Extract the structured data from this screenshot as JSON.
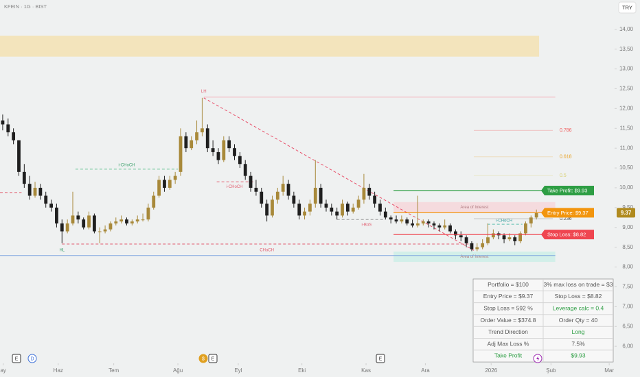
{
  "chart_data": {
    "type": "candlestick",
    "title": "KFEIN · 1G · BIST",
    "currency_button": "TRY",
    "up_color": "#a8893a",
    "down_color": "#1f1f1f",
    "xlim": [
      -0.5,
      113.5
    ],
    "ylim": [
      5.57,
      14.74
    ],
    "xticks": [
      {
        "value": 0.1,
        "label": "ay"
      },
      {
        "value": 10.3,
        "label": "Haz"
      },
      {
        "value": 20.6,
        "label": "Tem"
      },
      {
        "value": 32.5,
        "label": "Ağu"
      },
      {
        "value": 43.7,
        "label": "Eyl"
      },
      {
        "value": 55.5,
        "label": "Eki"
      },
      {
        "value": 67.4,
        "label": "Kas"
      },
      {
        "value": 78.4,
        "label": "Ara"
      },
      {
        "value": 90.6,
        "label": "2026"
      },
      {
        "value": 101.7,
        "label": "Şub"
      },
      {
        "value": 112.5,
        "label": "Mar"
      }
    ],
    "yticks": [
      {
        "value": 14,
        "label": "14,00"
      },
      {
        "value": 13.5,
        "label": "13,50"
      },
      {
        "value": 13,
        "label": "13,00"
      },
      {
        "value": 12.5,
        "label": "12,50"
      },
      {
        "value": 12,
        "label": "12,00"
      },
      {
        "value": 11.5,
        "label": "11,50"
      },
      {
        "value": 11,
        "label": "11,00"
      },
      {
        "value": 10.5,
        "label": "10,50"
      },
      {
        "value": 10,
        "label": "10,00"
      },
      {
        "value": 9.5,
        "label": "9,50"
      },
      {
        "value": 9,
        "label": "9,00"
      },
      {
        "value": 8.5,
        "label": "8,50"
      },
      {
        "value": 8,
        "label": "8,00"
      },
      {
        "value": 7.5,
        "label": "7,50"
      },
      {
        "value": 7,
        "label": "7,00"
      },
      {
        "value": 6.5,
        "label": "6,50"
      },
      {
        "value": 6,
        "label": "6,00"
      }
    ],
    "last_price": 9.37,
    "ohlc": [
      [
        11.7,
        11.85,
        11.45,
        11.6
      ],
      [
        11.6,
        11.75,
        11.3,
        11.4
      ],
      [
        11.4,
        11.5,
        11.1,
        11.2
      ],
      [
        11.2,
        11.2,
        10.3,
        10.4
      ],
      [
        10.4,
        10.6,
        10.0,
        10.1
      ],
      [
        10.1,
        10.3,
        9.7,
        9.8
      ],
      [
        9.8,
        10.15,
        9.75,
        10.0
      ],
      [
        10.0,
        10.1,
        9.7,
        9.8
      ],
      [
        9.8,
        9.9,
        9.5,
        9.6
      ],
      [
        9.6,
        9.7,
        9.4,
        9.5
      ],
      [
        9.5,
        9.6,
        9.0,
        9.1
      ],
      [
        9.1,
        9.2,
        8.6,
        8.9
      ],
      [
        8.9,
        9.2,
        8.85,
        9.1
      ],
      [
        9.1,
        9.9,
        9.05,
        9.3
      ],
      [
        9.3,
        9.4,
        9.1,
        9.2
      ],
      [
        9.2,
        9.25,
        8.95,
        9.0
      ],
      [
        9.0,
        9.4,
        8.95,
        9.3
      ],
      [
        9.3,
        9.35,
        8.85,
        8.9
      ],
      [
        8.9,
        9.0,
        8.6,
        8.9
      ],
      [
        8.9,
        9.05,
        8.85,
        8.95
      ],
      [
        8.95,
        9.15,
        8.9,
        9.1
      ],
      [
        9.1,
        9.25,
        9.05,
        9.15
      ],
      [
        9.15,
        9.3,
        9.1,
        9.2
      ],
      [
        9.2,
        9.25,
        9.05,
        9.1
      ],
      [
        9.1,
        9.2,
        9.05,
        9.15
      ],
      [
        9.15,
        9.3,
        9.1,
        9.2
      ],
      [
        9.2,
        9.35,
        9.15,
        9.2
      ],
      [
        9.2,
        9.6,
        9.15,
        9.5
      ],
      [
        9.5,
        9.9,
        9.45,
        9.8
      ],
      [
        9.8,
        10.3,
        9.75,
        10.2
      ],
      [
        10.2,
        10.3,
        9.9,
        10.0
      ],
      [
        10.0,
        10.3,
        9.95,
        10.2
      ],
      [
        10.2,
        10.4,
        10.1,
        10.3
      ],
      [
        10.4,
        11.5,
        10.3,
        11.3
      ],
      [
        11.3,
        11.4,
        10.9,
        11.0
      ],
      [
        11.0,
        11.3,
        10.95,
        11.2
      ],
      [
        11.2,
        11.7,
        11.1,
        11.4
      ],
      [
        11.4,
        12.27,
        11.3,
        11.5
      ],
      [
        11.5,
        11.6,
        10.9,
        11.0
      ],
      [
        11.0,
        11.2,
        10.8,
        10.9
      ],
      [
        10.9,
        11.0,
        10.6,
        10.7
      ],
      [
        10.7,
        11.3,
        10.65,
        11.2
      ],
      [
        11.2,
        11.3,
        10.9,
        11.0
      ],
      [
        11.0,
        11.1,
        10.7,
        10.8
      ],
      [
        10.8,
        10.9,
        10.5,
        10.6
      ],
      [
        10.6,
        10.7,
        10.2,
        10.3
      ],
      [
        10.3,
        10.4,
        9.9,
        10.0
      ],
      [
        10.0,
        10.2,
        9.8,
        9.9
      ],
      [
        9.9,
        10.0,
        9.5,
        9.6
      ],
      [
        9.6,
        9.7,
        9.15,
        9.3
      ],
      [
        9.3,
        9.8,
        9.25,
        9.7
      ],
      [
        9.7,
        10.0,
        9.6,
        9.9
      ],
      [
        9.9,
        10.3,
        9.8,
        10.1
      ],
      [
        10.1,
        10.2,
        9.7,
        9.8
      ],
      [
        9.8,
        9.9,
        9.5,
        9.6
      ],
      [
        9.6,
        9.7,
        9.2,
        9.3
      ],
      [
        9.3,
        9.5,
        9.2,
        9.4
      ],
      [
        9.4,
        9.7,
        9.3,
        9.6
      ],
      [
        9.6,
        10.7,
        9.5,
        10.0
      ],
      [
        10.0,
        10.1,
        9.5,
        9.6
      ],
      [
        9.6,
        9.7,
        9.4,
        9.5
      ],
      [
        9.5,
        9.6,
        9.3,
        9.4
      ],
      [
        9.4,
        9.5,
        9.2,
        9.3
      ],
      [
        9.3,
        9.7,
        9.25,
        9.6
      ],
      [
        9.6,
        9.65,
        9.3,
        9.4
      ],
      [
        9.4,
        9.6,
        9.35,
        9.5
      ],
      [
        9.5,
        9.8,
        9.45,
        9.7
      ],
      [
        9.7,
        10.35,
        9.6,
        10.0
      ],
      [
        10.0,
        10.1,
        9.7,
        9.8
      ],
      [
        9.8,
        9.9,
        9.5,
        9.6
      ],
      [
        9.6,
        9.7,
        9.3,
        9.4
      ],
      [
        9.4,
        9.5,
        9.2,
        9.25
      ],
      [
        9.25,
        9.3,
        9.1,
        9.2
      ],
      [
        9.2,
        9.3,
        9.1,
        9.15
      ],
      [
        9.15,
        9.3,
        9.1,
        9.2
      ],
      [
        9.2,
        9.25,
        9.05,
        9.1
      ],
      [
        9.1,
        9.2,
        9.0,
        9.05
      ],
      [
        9.05,
        9.8,
        9.0,
        9.1
      ],
      [
        9.1,
        9.2,
        9.05,
        9.15
      ],
      [
        9.15,
        9.2,
        9.0,
        9.1
      ],
      [
        9.1,
        9.15,
        8.95,
        9.05
      ],
      [
        9.05,
        9.1,
        8.9,
        9.0
      ],
      [
        9.0,
        9.2,
        8.95,
        9.05
      ],
      [
        9.05,
        9.1,
        8.85,
        8.9
      ],
      [
        8.9,
        8.95,
        8.7,
        8.8
      ],
      [
        8.8,
        8.9,
        8.65,
        8.75
      ],
      [
        8.75,
        8.8,
        8.5,
        8.6
      ],
      [
        8.6,
        8.65,
        8.4,
        8.45
      ],
      [
        8.45,
        8.6,
        8.4,
        8.5
      ],
      [
        8.5,
        8.7,
        8.45,
        8.6
      ],
      [
        8.6,
        9.1,
        8.55,
        8.75
      ],
      [
        8.75,
        8.95,
        8.7,
        8.85
      ],
      [
        8.85,
        8.9,
        8.7,
        8.8
      ],
      [
        8.8,
        8.85,
        8.6,
        8.7
      ],
      [
        8.7,
        8.85,
        8.65,
        8.75
      ],
      [
        8.75,
        8.8,
        8.55,
        8.65
      ],
      [
        8.65,
        8.9,
        8.6,
        8.85
      ],
      [
        8.85,
        9.15,
        8.8,
        9.1
      ],
      [
        9.1,
        9.3,
        9.0,
        9.25
      ],
      [
        9.25,
        9.45,
        9.2,
        9.37
      ]
    ],
    "zones": [
      {
        "x": [
          -0.5,
          99.5
        ],
        "y": [
          13.84,
          13.31
        ],
        "color": "#f3e2b3"
      },
      {
        "x": [
          72.5,
          102.5
        ],
        "y": [
          9.64,
          9.38
        ],
        "color": "#f6d7da",
        "label": "Area of Interest"
      },
      {
        "x": [
          72.5,
          102.5
        ],
        "y": [
          8.39,
          8.13
        ],
        "color": "#cdeee8",
        "label": "Area of Interest"
      }
    ],
    "lines": [
      {
        "x": [
          37.3,
          102.5
        ],
        "y": [
          12.29,
          12.29
        ],
        "color": "#f4a9b3",
        "dash": false
      },
      {
        "x": [
          -0.5,
          3.5
        ],
        "y": [
          9.88,
          9.88
        ],
        "color": "#e25c6e",
        "dash": true
      },
      {
        "x": [
          13.5,
          32.5
        ],
        "y": [
          10.47,
          10.47
        ],
        "color": "#5cc08d",
        "dash": true
      },
      {
        "x": [
          39.7,
          46.7
        ],
        "y": [
          10.15,
          10.15
        ],
        "color": "#e25c6e",
        "dash": true
      },
      {
        "x": [
          11.0,
          87.4
        ],
        "y": [
          8.58,
          8.58
        ],
        "color": "#e25c6e",
        "dash": true
      },
      {
        "x": [
          -0.5,
          102.5
        ],
        "y": [
          8.29,
          8.29
        ],
        "color": "#7ea6e0",
        "dash": false
      },
      {
        "x": [
          62.0,
          71.0
        ],
        "y": [
          9.2,
          9.2
        ],
        "color": "#9a9a9a",
        "dash": true
      },
      {
        "x": [
          89.9,
          96.4
        ],
        "y": [
          9.08,
          9.08
        ],
        "color": "#5cc0b0",
        "dash": true
      },
      {
        "x": [
          37.3,
          87.4
        ],
        "y": [
          12.27,
          8.42
        ],
        "color": "#e8506a",
        "dash": true
      }
    ],
    "annotations": [
      {
        "text": "LH",
        "x": 37.3,
        "y": 12.43,
        "color": "#e25c6e"
      },
      {
        "text": "i-CHoCH",
        "x": 23.0,
        "y": 10.57,
        "color": "#3aa06a"
      },
      {
        "text": "i-CHoCH",
        "x": 43.0,
        "y": 10.03,
        "color": "#e25c6e"
      },
      {
        "text": "HL",
        "x": 11.0,
        "y": 8.43,
        "color": "#3aa06a"
      },
      {
        "text": "CHoCH",
        "x": 49.0,
        "y": 8.43,
        "color": "#e25c6e"
      },
      {
        "text": "i-BoS",
        "x": 67.5,
        "y": 9.07,
        "color": "#e25c6e"
      },
      {
        "text": "i-CHoCH",
        "x": 93.0,
        "y": 9.17,
        "color": "#3aa0a0"
      }
    ],
    "fib_levels": [
      {
        "level": 0.786,
        "price": 11.45,
        "color": "#f05a5a"
      },
      {
        "level": 0.618,
        "price": 10.78,
        "color": "#e8a020"
      },
      {
        "level": 0.5,
        "price": 10.31,
        "color": "#d8d070"
      },
      {
        "level": 0.236,
        "price": 9.22,
        "color": "#555555"
      }
    ],
    "trade_levels": [
      {
        "label": "Take Profit: $9.93",
        "value": 9.93,
        "color": "#2e9e44"
      },
      {
        "label": "Entry Price: $9.37",
        "value": 9.37,
        "color": "#f2950e"
      },
      {
        "label": "Stop Loss: $8.82",
        "value": 8.82,
        "color": "#ef4650"
      }
    ],
    "table": [
      [
        "Portfolio = $100",
        "3% max loss on trade = $3"
      ],
      [
        "Entry Price = $9.37",
        "Stop Loss = $8.82"
      ],
      [
        "Stop Loss = 592 %",
        "Leverage calc = 0.4"
      ],
      [
        "Order Value = $374.8",
        "Order Qty = 40"
      ],
      [
        "Trend Direction",
        "Long"
      ],
      [
        "Adj Max Loss %",
        "7.5%"
      ],
      [
        "Take Profit",
        "$9.93"
      ]
    ],
    "event_icons": [
      "E",
      "D",
      "$",
      "E",
      "E"
    ]
  }
}
